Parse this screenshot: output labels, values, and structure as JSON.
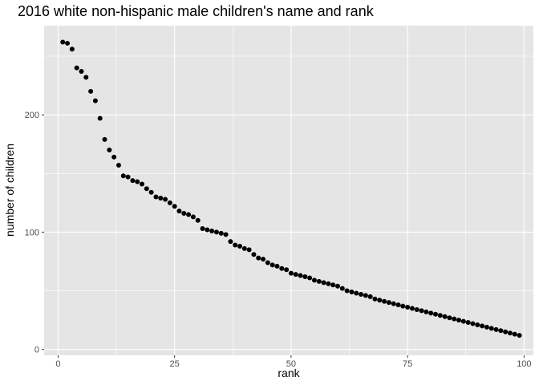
{
  "chart_data": {
    "type": "scatter",
    "title": "2016 white non-hispanic male children's name and rank",
    "xlabel": "rank",
    "ylabel": "number of children",
    "xlim": [
      -3,
      102
    ],
    "ylim": [
      -5,
      276
    ],
    "x_ticks": [
      0,
      25,
      50,
      75,
      100
    ],
    "x_tick_labels": [
      "0",
      "25",
      "50",
      "75",
      "100"
    ],
    "y_ticks": [
      0,
      100,
      200
    ],
    "y_tick_labels": [
      "0",
      "100",
      "200"
    ],
    "grid": true,
    "legend": "none",
    "colors": {
      "panel": "#e5e5e5",
      "grid": "#ffffff",
      "point": "#000000"
    },
    "x": [
      1,
      2,
      3,
      4,
      5,
      6,
      7,
      8,
      9,
      10,
      11,
      12,
      13,
      14,
      15,
      16,
      17,
      18,
      19,
      20,
      21,
      22,
      23,
      24,
      25,
      26,
      27,
      28,
      29,
      30,
      31,
      32,
      33,
      34,
      35,
      36,
      37,
      38,
      39,
      40,
      41,
      42,
      43,
      44,
      45,
      46,
      47,
      48,
      49,
      50,
      51,
      52,
      53,
      54,
      55,
      56,
      57,
      58,
      59,
      60,
      61,
      62,
      63,
      64,
      65,
      66,
      67,
      68,
      69,
      70,
      71,
      72,
      73,
      74,
      75,
      76,
      77,
      78,
      79,
      80,
      81,
      82,
      83,
      84,
      85,
      86,
      87,
      88,
      89,
      90,
      91,
      92,
      93,
      94,
      95,
      96,
      97,
      98,
      99
    ],
    "y": [
      262,
      261,
      256,
      240,
      237,
      232,
      220,
      212,
      197,
      179,
      170,
      164,
      157,
      148,
      147,
      144,
      143,
      141,
      137,
      134,
      130,
      129,
      128,
      125,
      122,
      118,
      116,
      115,
      113,
      110,
      103,
      102,
      101,
      100,
      99,
      98,
      92,
      89,
      88,
      86,
      85,
      81,
      78,
      77,
      74,
      72,
      71,
      69,
      68,
      65,
      64,
      63,
      62,
      61,
      59,
      58,
      57,
      56,
      55,
      54,
      52,
      50,
      49,
      48,
      47,
      46,
      45,
      43,
      42,
      41,
      40,
      39,
      38,
      37,
      36,
      35,
      34,
      33,
      32,
      31,
      30,
      29,
      28,
      27,
      26,
      25,
      24,
      23,
      22,
      21,
      20,
      19,
      18,
      17,
      16,
      15,
      14,
      13,
      12
    ]
  }
}
